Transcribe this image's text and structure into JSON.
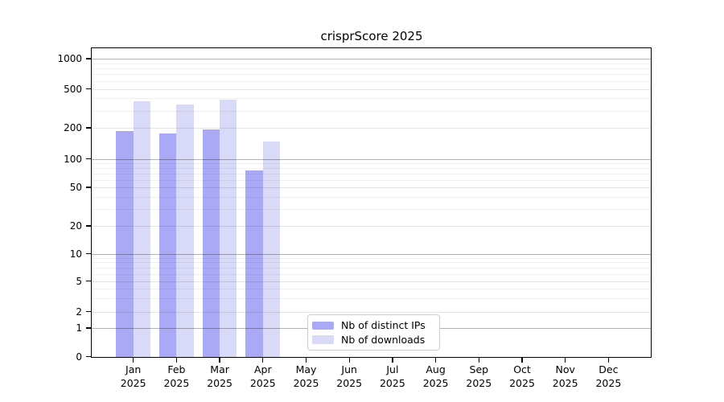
{
  "chart_data": {
    "type": "bar",
    "title": "crisprScore 2025",
    "categories": [
      "Jan",
      "Feb",
      "Mar",
      "Apr",
      "May",
      "Jun",
      "Jul",
      "Aug",
      "Sep",
      "Oct",
      "Nov",
      "Dec"
    ],
    "category_year": "2025",
    "series": [
      {
        "name": "Nb of distinct IPs",
        "color": "#a9a9f6",
        "values": [
          187,
          178,
          193,
          75,
          0,
          0,
          0,
          0,
          0,
          0,
          0,
          0
        ]
      },
      {
        "name": "Nb of downloads",
        "color": "#d9d9f8",
        "values": [
          375,
          348,
          390,
          148,
          0,
          0,
          0,
          0,
          0,
          0,
          0,
          0
        ]
      }
    ],
    "y_ticks": [
      0,
      1,
      2,
      5,
      10,
      20,
      50,
      100,
      200,
      500,
      1000
    ],
    "y_scale": "log-like (pseudo-log with 0 baseline)",
    "ylim": [
      0,
      1000
    ],
    "grid": true,
    "legend_position": "lower-center-inside"
  }
}
